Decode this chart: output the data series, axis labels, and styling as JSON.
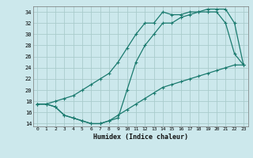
{
  "xlabel": "Humidex (Indice chaleur)",
  "bg_color": "#cce8ec",
  "grid_color": "#aacccc",
  "line_color": "#1a7a6e",
  "xlim": [
    -0.5,
    23.5
  ],
  "ylim": [
    13.5,
    35
  ],
  "xticks": [
    0,
    1,
    2,
    3,
    4,
    5,
    6,
    7,
    8,
    9,
    10,
    11,
    12,
    13,
    14,
    15,
    16,
    17,
    18,
    19,
    20,
    21,
    22,
    23
  ],
  "yticks": [
    14,
    16,
    18,
    20,
    22,
    24,
    26,
    28,
    30,
    32,
    34
  ],
  "line1_x": [
    0,
    1,
    2,
    3,
    4,
    5,
    6,
    7,
    8,
    9,
    10,
    11,
    12,
    13,
    14,
    15,
    16,
    17,
    18,
    19,
    20,
    21,
    22,
    23
  ],
  "line1_y": [
    17.5,
    17.5,
    18.0,
    18.5,
    19.0,
    20.0,
    21.0,
    22.0,
    23.0,
    25.0,
    27.5,
    30.0,
    32.0,
    32.0,
    34.0,
    33.5,
    33.5,
    34.0,
    34.0,
    34.5,
    34.5,
    34.5,
    32.0,
    24.5
  ],
  "line2_x": [
    0,
    1,
    2,
    3,
    4,
    5,
    6,
    7,
    8,
    9,
    10,
    11,
    12,
    13,
    14,
    15,
    16,
    17,
    18,
    19,
    20,
    21,
    22,
    23
  ],
  "line2_y": [
    17.5,
    17.5,
    17.0,
    15.5,
    15.0,
    14.5,
    14.0,
    14.0,
    14.5,
    15.0,
    20.0,
    25.0,
    28.0,
    30.0,
    32.0,
    32.0,
    33.0,
    33.5,
    34.0,
    34.0,
    34.0,
    32.0,
    26.5,
    24.5
  ],
  "line3_x": [
    0,
    1,
    2,
    3,
    4,
    5,
    6,
    7,
    8,
    9,
    10,
    11,
    12,
    13,
    14,
    15,
    16,
    17,
    18,
    19,
    20,
    21,
    22,
    23
  ],
  "line3_y": [
    17.5,
    17.5,
    17.0,
    15.5,
    15.0,
    14.5,
    14.0,
    14.0,
    14.5,
    15.5,
    16.5,
    17.5,
    18.5,
    19.5,
    20.5,
    21.0,
    21.5,
    22.0,
    22.5,
    23.0,
    23.5,
    24.0,
    24.5,
    24.5
  ]
}
